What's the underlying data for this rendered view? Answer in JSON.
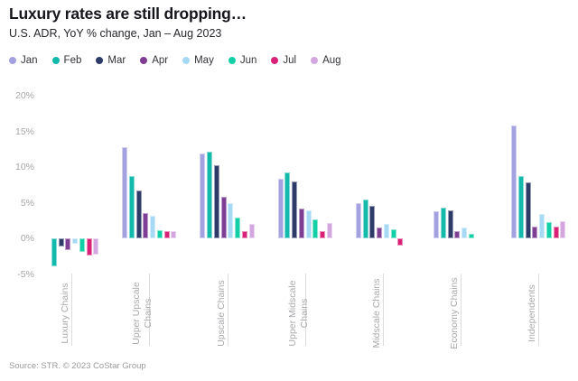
{
  "chart_data": {
    "type": "bar",
    "title": "Luxury rates are still dropping…",
    "subtitle": "U.S. ADR, YoY % change, Jan – Aug 2023",
    "source": "Source: STR. © 2023 CoStar Group",
    "unit": "%",
    "ylim": [
      -5,
      20
    ],
    "yticks": [
      20,
      15,
      10,
      5,
      0,
      -5
    ],
    "grid": false,
    "legend_position": "top-left",
    "categories": [
      "Luxury Chains",
      "Upper Upscale Chains",
      "Upscale Chains",
      "Upper Midscale Chains",
      "Midscale Chains",
      "Economy Chains",
      "Independents"
    ],
    "categories_display": [
      [
        "Luxury Chains"
      ],
      [
        "Upper Upscale",
        "Chains"
      ],
      [
        "Upscale Chains"
      ],
      [
        "Upper Midscale",
        "Chains"
      ],
      [
        "Midscale Chains"
      ],
      [
        "Economy Chains"
      ],
      [
        "Independents"
      ]
    ],
    "series": [
      {
        "name": "Jan",
        "color": "#a4a1e1",
        "values": [
          0,
          12.8,
          11.9,
          8.3,
          4.9,
          3.8,
          15.8
        ]
      },
      {
        "name": "Feb",
        "color": "#13b9aa",
        "values": [
          -3.9,
          8.7,
          12.2,
          9.2,
          5.5,
          4.3,
          8.8
        ]
      },
      {
        "name": "Mar",
        "color": "#2e3b68",
        "values": [
          -1.1,
          6.7,
          10.2,
          8.0,
          4.6,
          3.9,
          7.9
        ]
      },
      {
        "name": "Apr",
        "color": "#7d3e94",
        "values": [
          -1.7,
          3.5,
          5.8,
          4.2,
          1.5,
          1.0,
          1.7
        ]
      },
      {
        "name": "May",
        "color": "#a6d9f4",
        "values": [
          -0.7,
          3.2,
          4.9,
          3.9,
          2.0,
          1.5,
          3.4
        ]
      },
      {
        "name": "Jun",
        "color": "#12cfa6",
        "values": [
          -1.9,
          1.2,
          2.9,
          2.7,
          1.3,
          0.7,
          2.3
        ]
      },
      {
        "name": "Jul",
        "color": "#d92277",
        "values": [
          -2.4,
          1.0,
          1.0,
          1.0,
          -1.0,
          0,
          1.6
        ]
      },
      {
        "name": "Aug",
        "color": "#d4a6e0",
        "values": [
          -2.3,
          1.0,
          2.0,
          2.1,
          0,
          0,
          2.4
        ]
      }
    ]
  }
}
